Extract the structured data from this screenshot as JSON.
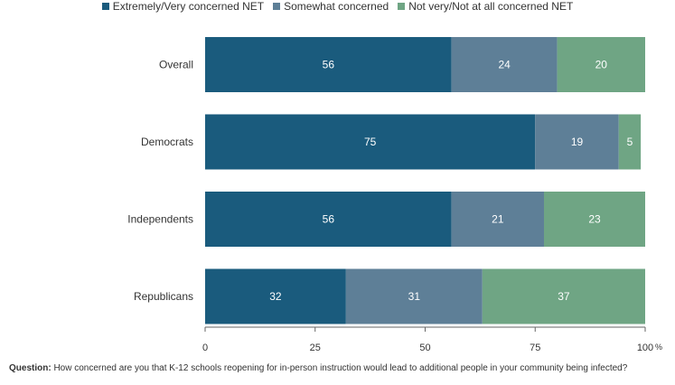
{
  "chart_data": {
    "type": "bar",
    "orientation": "horizontal",
    "stacked": true,
    "categories": [
      "Overall",
      "Democrats",
      "Independents",
      "Republicans"
    ],
    "series": [
      {
        "name": "Extremely/Very concerned NET",
        "values": [
          56,
          75,
          56,
          32
        ],
        "color": "#1a5b7d"
      },
      {
        "name": "Somewhat concerned",
        "values": [
          24,
          19,
          21,
          31
        ],
        "color": "#5e7f97"
      },
      {
        "name": "Not very/Not at all concerned NET",
        "values": [
          20,
          5,
          23,
          37
        ],
        "color": "#6fa584"
      }
    ],
    "xlim": [
      0,
      100
    ],
    "xticks": [
      "0",
      "25",
      "50",
      "75",
      "100"
    ],
    "xunit": "%",
    "legend": "top",
    "grid": false
  },
  "footnote": {
    "label": "Question:",
    "text": "How concerned are you that K-12 schools reopening for in-person instruction would lead to additional people in your community being infected?"
  }
}
